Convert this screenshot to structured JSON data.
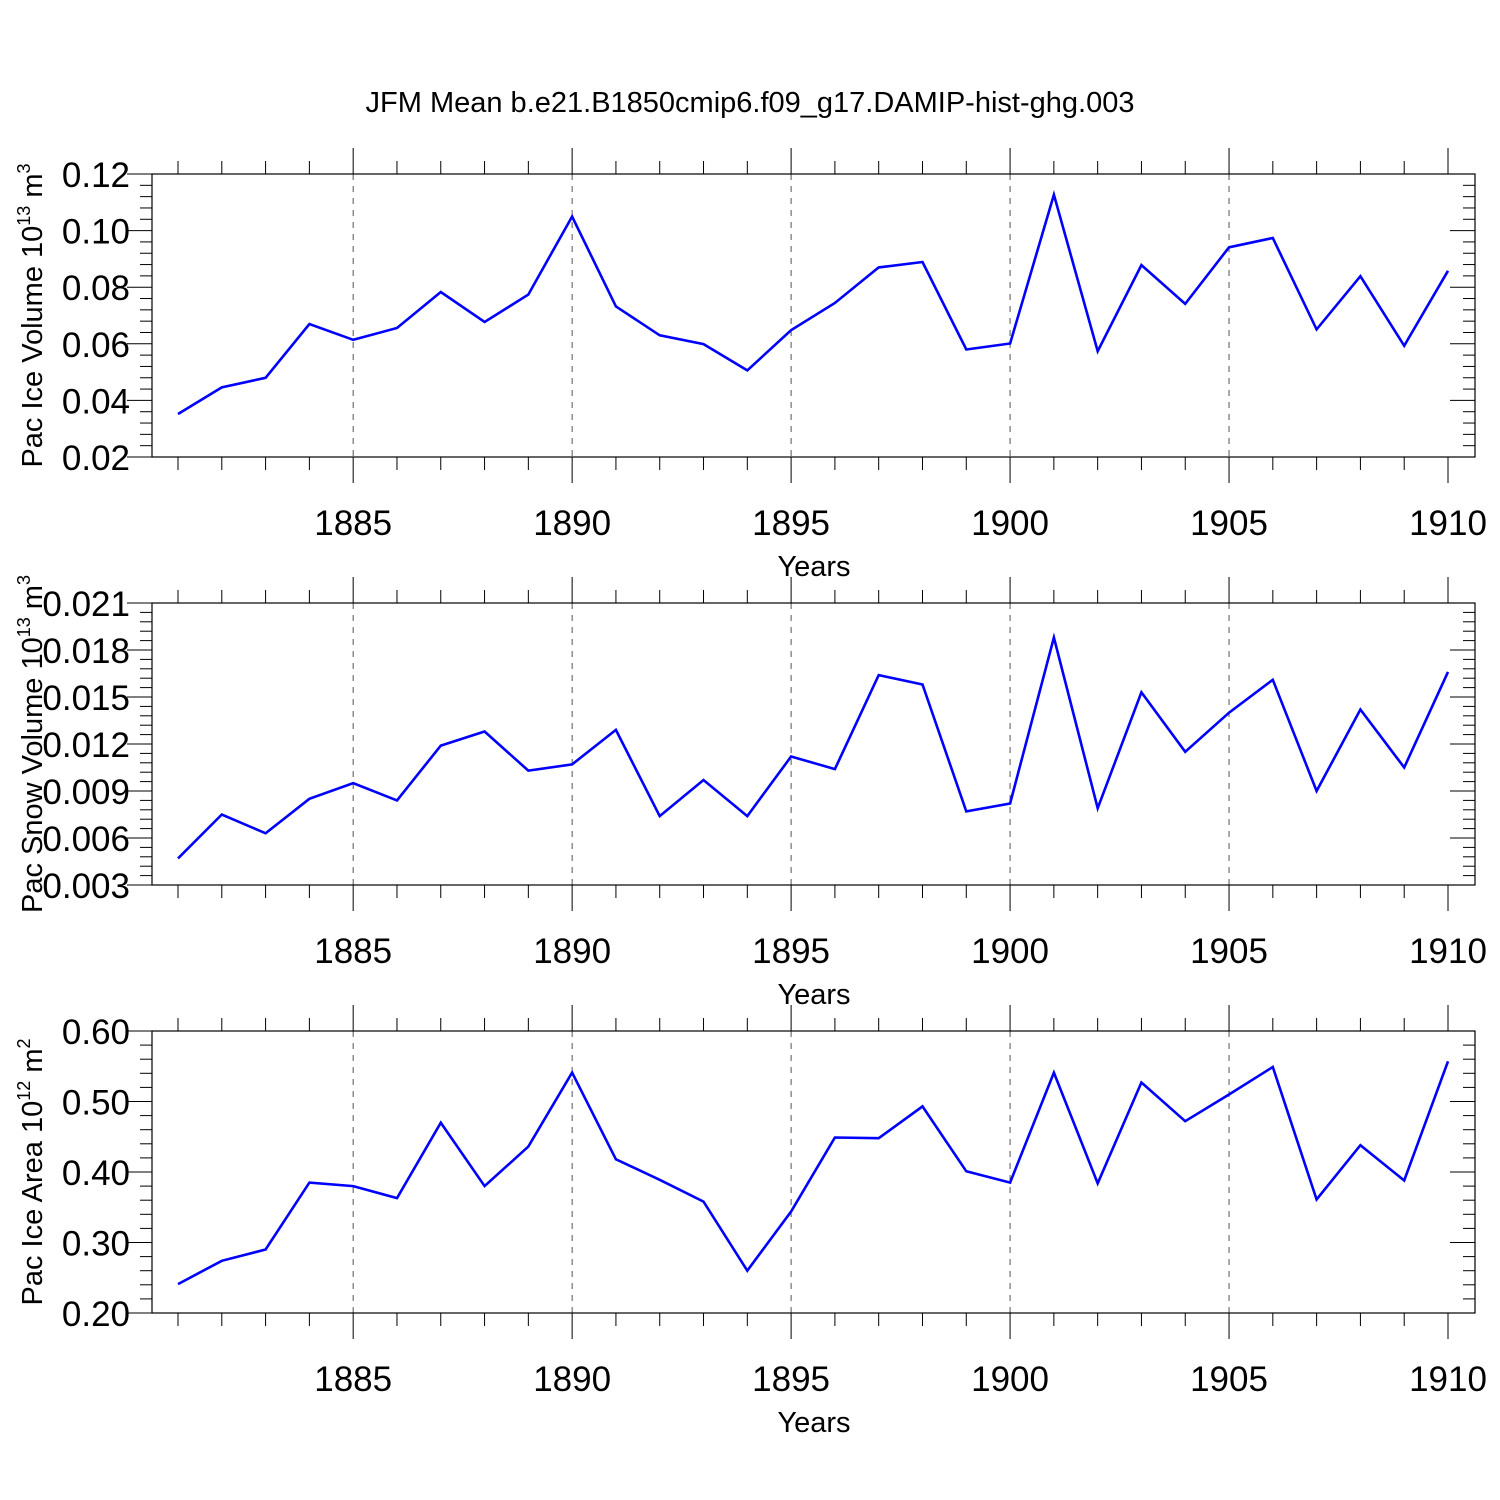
{
  "title": "JFM Mean b.e21.B1850cmip6.f09_g17.DAMIP-hist-ghg.003",
  "colors": {
    "series": "#0000ff",
    "axis": "#000000",
    "grid": "#555555"
  },
  "chart_data": [
    {
      "type": "line",
      "xlabel": "Years",
      "ylabel": {
        "text": "Pac Ice Volume 10",
        "exp": "13",
        "unit": " m",
        "unit_exp": "3"
      },
      "xlim": [
        1881,
        1910
      ],
      "ylim": [
        0.02,
        0.12
      ],
      "xticks": [
        "1885",
        "1890",
        "1895",
        "1900",
        "1905",
        "1910"
      ],
      "yticks": [
        "0.02",
        "0.04",
        "0.06",
        "0.08",
        "0.10",
        "0.12"
      ],
      "x": [
        1881,
        1882,
        1883,
        1884,
        1885,
        1886,
        1887,
        1888,
        1889,
        1890,
        1891,
        1892,
        1893,
        1894,
        1895,
        1896,
        1897,
        1898,
        1899,
        1900,
        1901,
        1902,
        1903,
        1904,
        1905,
        1906,
        1907,
        1908,
        1909,
        1910
      ],
      "series": [
        {
          "name": "Pac Ice Volume",
          "values": [
            0.0352,
            0.0446,
            0.048,
            0.067,
            0.0614,
            0.0656,
            0.0783,
            0.0677,
            0.0774,
            0.105,
            0.0732,
            0.063,
            0.0599,
            0.0506,
            0.0648,
            0.0744,
            0.087,
            0.0889,
            0.058,
            0.0601,
            0.1127,
            0.0574,
            0.0878,
            0.0741,
            0.0941,
            0.0974,
            0.0651,
            0.0839,
            0.0593,
            0.0858
          ]
        }
      ]
    },
    {
      "type": "line",
      "xlabel": "Years",
      "ylabel": {
        "text": "Pac Snow Volume 10",
        "exp": "13",
        "unit": " m",
        "unit_exp": "3"
      },
      "xlim": [
        1881,
        1910
      ],
      "ylim": [
        0.003,
        0.021
      ],
      "xticks": [
        "1885",
        "1890",
        "1895",
        "1900",
        "1905",
        "1910"
      ],
      "yticks": [
        "0.003",
        "0.006",
        "0.009",
        "0.012",
        "0.015",
        "0.018",
        "0.021"
      ],
      "x": [
        1881,
        1882,
        1883,
        1884,
        1885,
        1886,
        1887,
        1888,
        1889,
        1890,
        1891,
        1892,
        1893,
        1894,
        1895,
        1896,
        1897,
        1898,
        1899,
        1900,
        1901,
        1902,
        1903,
        1904,
        1905,
        1906,
        1907,
        1908,
        1909,
        1910
      ],
      "series": [
        {
          "name": "Pac Snow Volume",
          "values": [
            0.0047,
            0.0075,
            0.0063,
            0.0085,
            0.0095,
            0.0084,
            0.0119,
            0.0128,
            0.0103,
            0.0107,
            0.0129,
            0.0074,
            0.0097,
            0.0074,
            0.0112,
            0.0104,
            0.0164,
            0.0158,
            0.0077,
            0.0082,
            0.0188,
            0.0079,
            0.0153,
            0.0115,
            0.014,
            0.0161,
            0.009,
            0.0142,
            0.0105,
            0.0166
          ]
        }
      ]
    },
    {
      "type": "line",
      "xlabel": "Years",
      "ylabel": {
        "text": "Pac Ice Area 10",
        "exp": "12",
        "unit": " m",
        "unit_exp": "2"
      },
      "xlim": [
        1881,
        1910
      ],
      "ylim": [
        0.2,
        0.6
      ],
      "xticks": [
        "1885",
        "1890",
        "1895",
        "1900",
        "1905",
        "1910"
      ],
      "yticks": [
        "0.20",
        "0.30",
        "0.40",
        "0.50",
        "0.60"
      ],
      "x": [
        1881,
        1882,
        1883,
        1884,
        1885,
        1886,
        1887,
        1888,
        1889,
        1890,
        1891,
        1892,
        1893,
        1894,
        1895,
        1896,
        1897,
        1898,
        1899,
        1900,
        1901,
        1902,
        1903,
        1904,
        1905,
        1906,
        1907,
        1908,
        1909,
        1910
      ],
      "series": [
        {
          "name": "Pac Ice Area",
          "values": [
            0.241,
            0.274,
            0.29,
            0.385,
            0.38,
            0.363,
            0.47,
            0.38,
            0.436,
            0.541,
            0.418,
            0.389,
            0.358,
            0.26,
            0.344,
            0.449,
            0.448,
            0.493,
            0.401,
            0.385,
            0.541,
            0.384,
            0.527,
            0.472,
            0.51,
            0.549,
            0.361,
            0.438,
            0.388,
            0.557
          ]
        }
      ]
    }
  ]
}
